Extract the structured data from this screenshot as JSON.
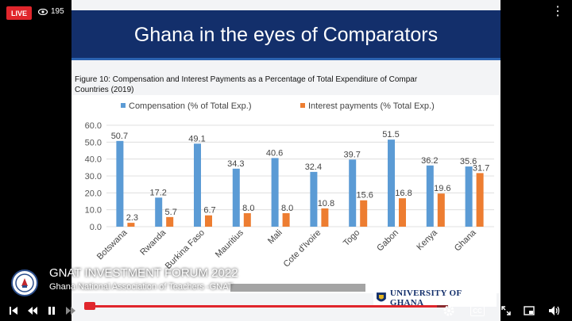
{
  "overlay": {
    "live_label": "LIVE",
    "viewer_count": "195",
    "icons": {
      "views": "eye-icon",
      "more": "more-vertical-icon"
    }
  },
  "slide": {
    "title": "Ghana in the eyes of  Comparators",
    "caption_line1": "Figure 10: Compensation and Interest Payments as a Percentage of Total Expenditure of Compar",
    "caption_line2": "Countries (2019)"
  },
  "chart_data": {
    "type": "bar",
    "categories": [
      "Botswana",
      "Rwanda",
      "Burkina Faso",
      "Mauritius",
      "Mali",
      "Cote d'Ivoire",
      "Togo",
      "Gabon",
      "Kenya",
      "Ghana"
    ],
    "series": [
      {
        "name": "Compensation (% of Total Exp.)",
        "color": "#5b9bd5",
        "values": [
          50.7,
          17.2,
          49.1,
          34.3,
          40.6,
          32.4,
          39.7,
          51.5,
          36.2,
          35.6
        ]
      },
      {
        "name": "Interest payments (% Total Exp.)",
        "color": "#ed7d31",
        "values": [
          2.3,
          5.7,
          6.7,
          8.0,
          8.0,
          10.8,
          15.6,
          16.8,
          19.6,
          31.7
        ]
      }
    ],
    "series_labels": [
      [
        "50.7",
        "17.2",
        "49.1",
        "34.3",
        "40.6",
        "32.4",
        "39.7",
        "51.5",
        "36.2",
        "35.6"
      ],
      [
        "2.3",
        "5.7",
        "6.7",
        "8.0",
        "8.0",
        "10.8",
        "15.6",
        "16.8",
        "19.6",
        "31.7"
      ]
    ],
    "category_labels": [
      "Botswana",
      "Rwanda",
      "Burkina Faso",
      "Mauritius",
      "Mali",
      "Cote d'Ivoire",
      "Togo",
      "Gabon",
      "Kenya",
      "Ghana"
    ],
    "yticks": [
      "0.0",
      "10.0",
      "20.0",
      "30.0",
      "40.0",
      "50.0",
      "60.0"
    ],
    "ylim": [
      0,
      60
    ],
    "legend": "top",
    "grid": true
  },
  "stream": {
    "title": "GNAT INVESTMENT FORUM 2022",
    "subtitle": "Ghana National Association of Teachers -GNAT",
    "logo_text": "UNIVERSITY OF GHANA",
    "progress_fraction": 0.97,
    "accent_color": "#e0262c"
  },
  "controls": {
    "icons": [
      "skip-previous-icon",
      "rewind-icon",
      "pause-icon",
      "fast-forward-icon",
      "settings-icon",
      "closed-captions-icon",
      "expand-icon",
      "picture-in-picture-icon",
      "volume-icon"
    ],
    "cc_label": "CC"
  }
}
